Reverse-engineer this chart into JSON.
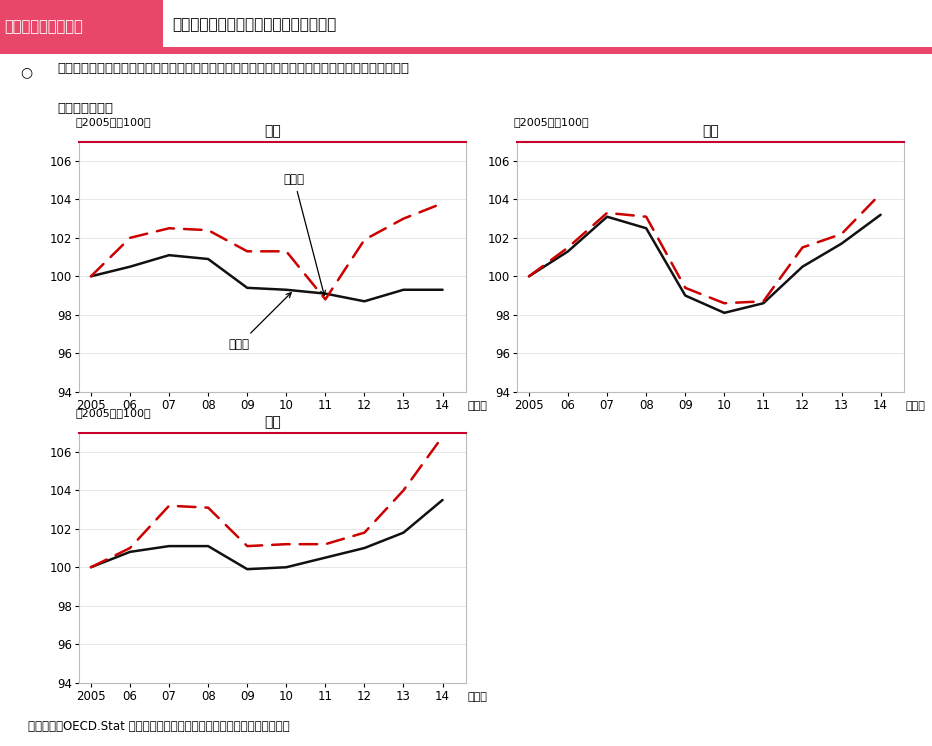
{
  "title_tag": "第３－（３）－５図",
  "title_main": "雇用によらない働き方の状況（日米英）",
  "subtitle": "我が国では、雇用者数の伸びが就業者数の伸びに比べて大きくなっており、雇用によらない働き方",
  "subtitle2": "は伸びてない。",
  "source": "資料出所　OECD.Stat をもとに厘生労働省労働政策担当参事官室にて作成",
  "years": [
    2005,
    2006,
    2007,
    2008,
    2009,
    2010,
    2011,
    2012,
    2013,
    2014
  ],
  "japan": {
    "title": "日本",
    "ylabel": "（2005年＝100）",
    "employed": [
      100.0,
      102.0,
      102.5,
      102.4,
      101.3,
      101.3,
      98.8,
      101.9,
      103.0,
      103.8
    ],
    "workers": [
      100.0,
      100.5,
      101.1,
      100.9,
      99.4,
      99.3,
      99.1,
      98.7,
      99.3,
      99.3
    ]
  },
  "usa": {
    "title": "米国",
    "ylabel": "（2005年＝100）",
    "employed": [
      100.0,
      101.5,
      103.3,
      103.1,
      99.4,
      98.6,
      98.7,
      101.5,
      102.2,
      104.3
    ],
    "workers": [
      100.0,
      101.3,
      103.1,
      102.5,
      99.0,
      98.1,
      98.6,
      100.5,
      101.7,
      103.2
    ]
  },
  "uk": {
    "title": "英国",
    "ylabel": "（2005年＝100）",
    "employed": [
      100.0,
      101.0,
      103.2,
      103.1,
      101.1,
      101.2,
      101.2,
      101.8,
      104.0,
      106.8
    ],
    "workers": [
      100.0,
      100.8,
      101.1,
      101.1,
      99.9,
      100.0,
      100.5,
      101.0,
      101.8,
      103.5
    ]
  },
  "ylim": [
    94,
    107
  ],
  "yticks": [
    94,
    96,
    98,
    100,
    102,
    104,
    106
  ],
  "header_bg": "#e8476a",
  "header_text_color": "#ffffff",
  "box_top_color": "#c9002b",
  "box_border_color": "#bbbbbb",
  "line_color_employed": "#cc0000",
  "line_color_workers": "#111111",
  "line_width": 1.8,
  "ann_employed": "雇用者",
  "ann_workers": "就業者",
  "nen": "（年）"
}
